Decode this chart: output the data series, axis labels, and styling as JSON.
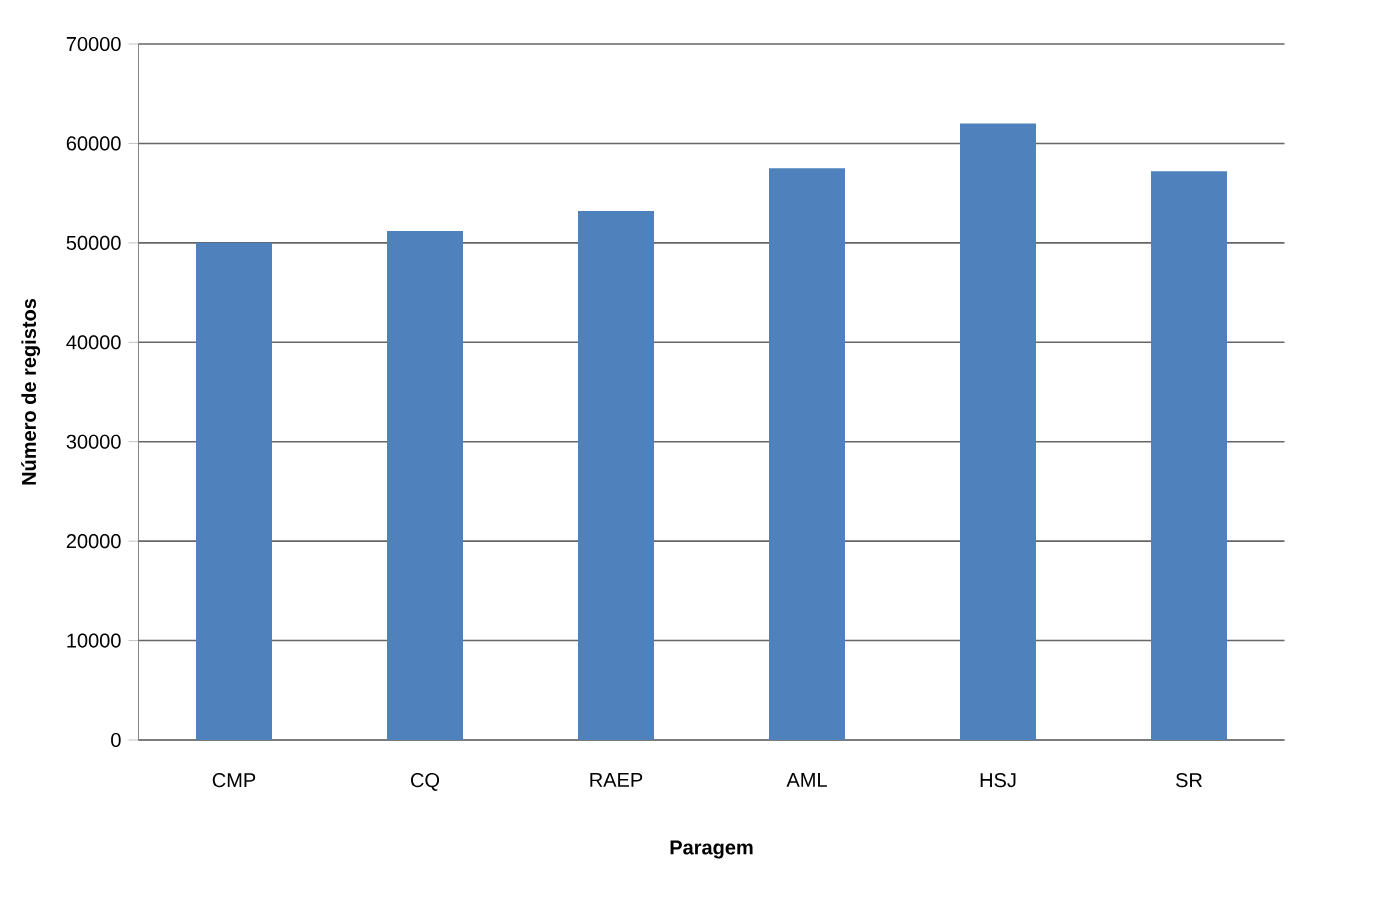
{
  "chart_data": {
    "type": "bar",
    "xlabel": "Paragem",
    "ylabel": "Número de registos",
    "categories": [
      "CMP",
      "CQ",
      "RAEP",
      "AML",
      "HSJ",
      "SR"
    ],
    "values": [
      50000,
      51200,
      53200,
      57500,
      62000,
      57200
    ],
    "color": "#4f81bd",
    "ylim": [
      0,
      70000
    ],
    "yticks": [
      0,
      10000,
      20000,
      30000,
      40000,
      50000,
      60000,
      70000
    ],
    "grid": "y"
  }
}
